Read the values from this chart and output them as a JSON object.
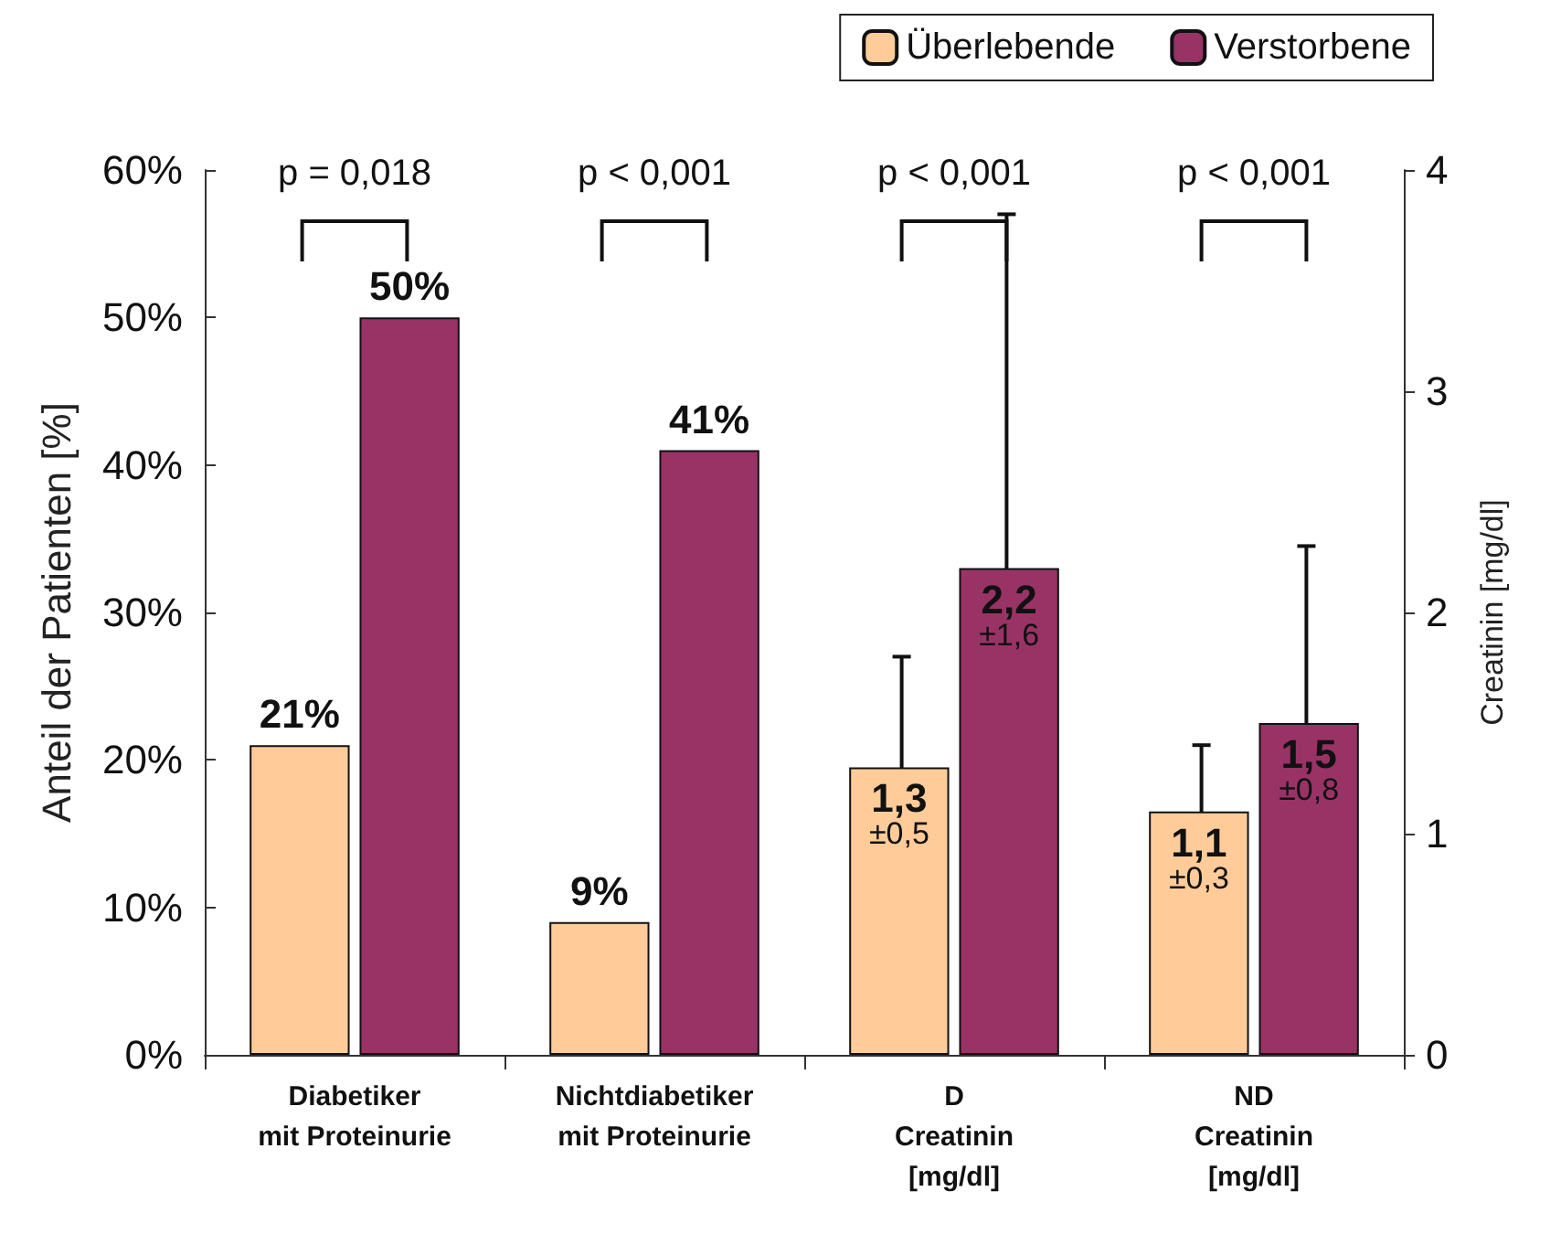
{
  "chart_data": {
    "type": "bar",
    "categories": [
      "Diabetiker\nmit Proteinurie",
      "Nichtdiabetiker\nmit Proteinurie",
      "D\nCreatinin\n[mg/dl]",
      "ND\nCreatinin\n[mg/dl]"
    ],
    "ylabel": "Anteil der Patienten [%]",
    "y2label": "Creatinin [mg/dl]",
    "series": [
      {
        "name": "Überlebende",
        "color": "#ffcc99",
        "values": [
          21,
          9,
          null,
          null
        ],
        "value_labels": [
          "21%",
          "9%",
          null,
          null
        ]
      },
      {
        "name": "Verstorbene",
        "color": "#993366",
        "values": [
          50,
          41,
          null,
          null
        ],
        "value_labels": [
          "50%",
          "41%",
          null,
          null
        ]
      },
      {
        "color": "#ffcc99",
        "axis": "y2",
        "values": [
          null,
          null,
          1.3,
          1.1
        ],
        "errors": [
          null,
          null,
          0.5,
          0.3
        ],
        "value_labels": [
          null,
          null,
          "1,3\n±0,5",
          "1,1\n±0,3"
        ]
      },
      {
        "color": "#993366",
        "axis": "y2",
        "values": [
          null,
          null,
          2.2,
          1.5
        ],
        "errors": [
          null,
          null,
          1.6,
          0.8
        ],
        "value_labels": [
          null,
          null,
          "2,2\n±1,6",
          "1,5\n±0,8"
        ]
      }
    ],
    "ylim": [
      0,
      60
    ],
    "yticks": [
      {
        "value": 0,
        "label": "0%"
      },
      {
        "value": 10,
        "label": "10%"
      },
      {
        "value": 20,
        "label": "20%"
      },
      {
        "value": 30,
        "label": "30%"
      },
      {
        "value": 40,
        "label": "40%"
      },
      {
        "value": 50,
        "label": "50%"
      },
      {
        "value": 60,
        "label": "60%"
      }
    ],
    "y2lim": [
      0,
      4
    ],
    "y2ticks": [
      0,
      1,
      2,
      3,
      4
    ],
    "annotations": [
      "p = 0,018",
      "p < 0,001",
      "p < 0,001",
      "p < 0,001"
    ],
    "legend": "top right",
    "grid": false
  }
}
